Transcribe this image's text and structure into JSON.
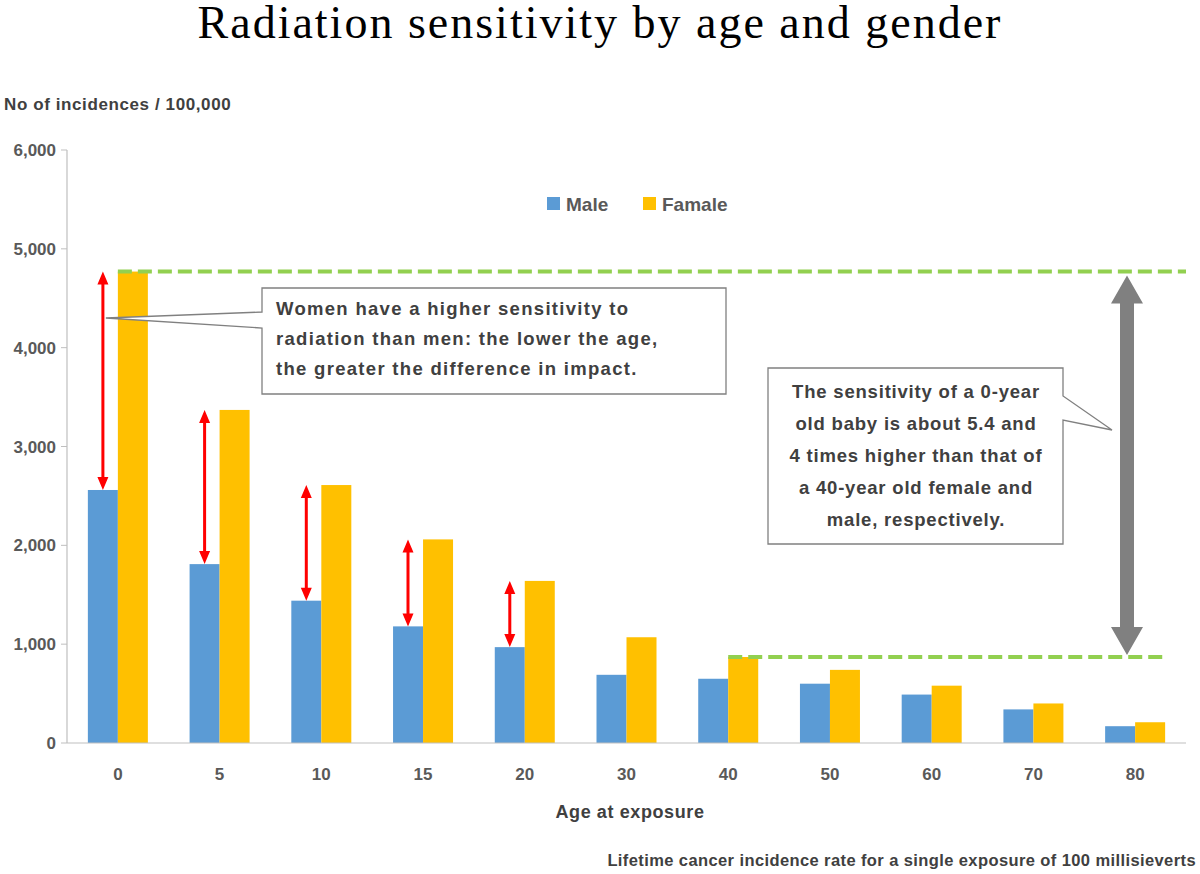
{
  "chart_data": {
    "type": "bar",
    "title": "Radiation sensitivity by age and gender",
    "y_label": "No of incidences / 100,000",
    "x_label": "Age at exposure",
    "note": "Lifetime cancer incidence rate for a single exposure of 100 millisieverts",
    "categories": [
      "0",
      "5",
      "10",
      "15",
      "20",
      "30",
      "40",
      "50",
      "60",
      "70",
      "80"
    ],
    "series": [
      {
        "name": "Male",
        "color": "#5b9bd5",
        "values": [
          2560,
          1810,
          1440,
          1180,
          970,
          690,
          650,
          600,
          490,
          340,
          170
        ]
      },
      {
        "name": "Famale",
        "color": "#ffc000",
        "values": [
          4770,
          3370,
          2610,
          2060,
          1640,
          1070,
          870,
          740,
          580,
          400,
          210
        ]
      }
    ],
    "ylim": [
      0,
      6000
    ],
    "yticks": [
      0,
      {
        "value": 1000,
        "label": "1,000"
      },
      {
        "value": 2000,
        "label": "2,000"
      },
      {
        "value": 3000,
        "label": "3,000"
      },
      {
        "value": 4000,
        "label": "4,000"
      },
      {
        "value": 5000,
        "label": "5,000"
      },
      {
        "value": 6000,
        "label": "6,000"
      }
    ],
    "grid": false,
    "legend": "top",
    "annotations": [
      {
        "text": [
          "Women have a higher sensitivity to",
          "radiation than men: the lower the age,",
          "the greater the difference in impact."
        ]
      },
      {
        "text": [
          "The sensitivity of a 0-year",
          "old baby is about 5.4 and",
          "4 times higher than that of",
          "a 40-year old female and",
          "male, respectively."
        ]
      }
    ]
  }
}
